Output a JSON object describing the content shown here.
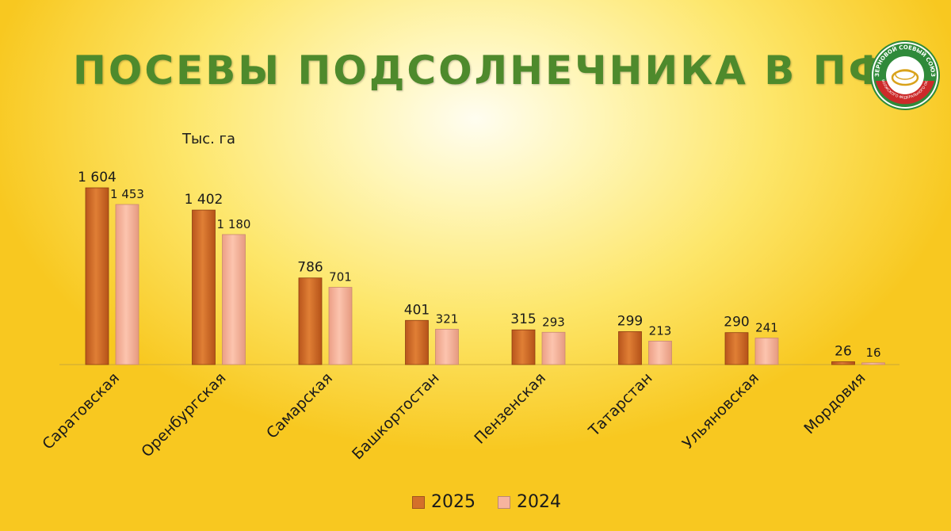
{
  "title": "ПОСЕВЫ ПОДСОЛНЕЧНИКА В ПФО",
  "logo": {
    "text_top": "ЗЕРНОВОЙ СОЕВЫЙ СОЮЗ",
    "text_bottom": "ПРИВОЛЖСКОГО ФЕДЕРАЛЬНОГО ОКРУГА",
    "icon": "logo-seal"
  },
  "chart_data": {
    "type": "bar",
    "unit_label": "Тыс. га",
    "categories": [
      "Саратовская",
      "Оренбургская",
      "Самарская",
      "Башкортостан",
      "Пензенская",
      "Татарстан",
      "Ульяновская",
      "Мордовия"
    ],
    "series": [
      {
        "name": "2025",
        "color": "#d4702a",
        "values": [
          1604,
          1402,
          786,
          401,
          315,
          299,
          290,
          26
        ],
        "labels": [
          "1 604",
          "1 402",
          "786",
          "401",
          "315",
          "299",
          "290",
          "26"
        ]
      },
      {
        "name": "2024",
        "color": "#f7b49e",
        "values": [
          1453,
          1180,
          701,
          321,
          293,
          213,
          241,
          16
        ],
        "labels": [
          "1 453",
          "1 180",
          "701",
          "321",
          "293",
          "213",
          "241",
          "16"
        ]
      }
    ],
    "ylim": [
      0,
      1604
    ],
    "legend_position": "bottom-center",
    "grid": false
  }
}
